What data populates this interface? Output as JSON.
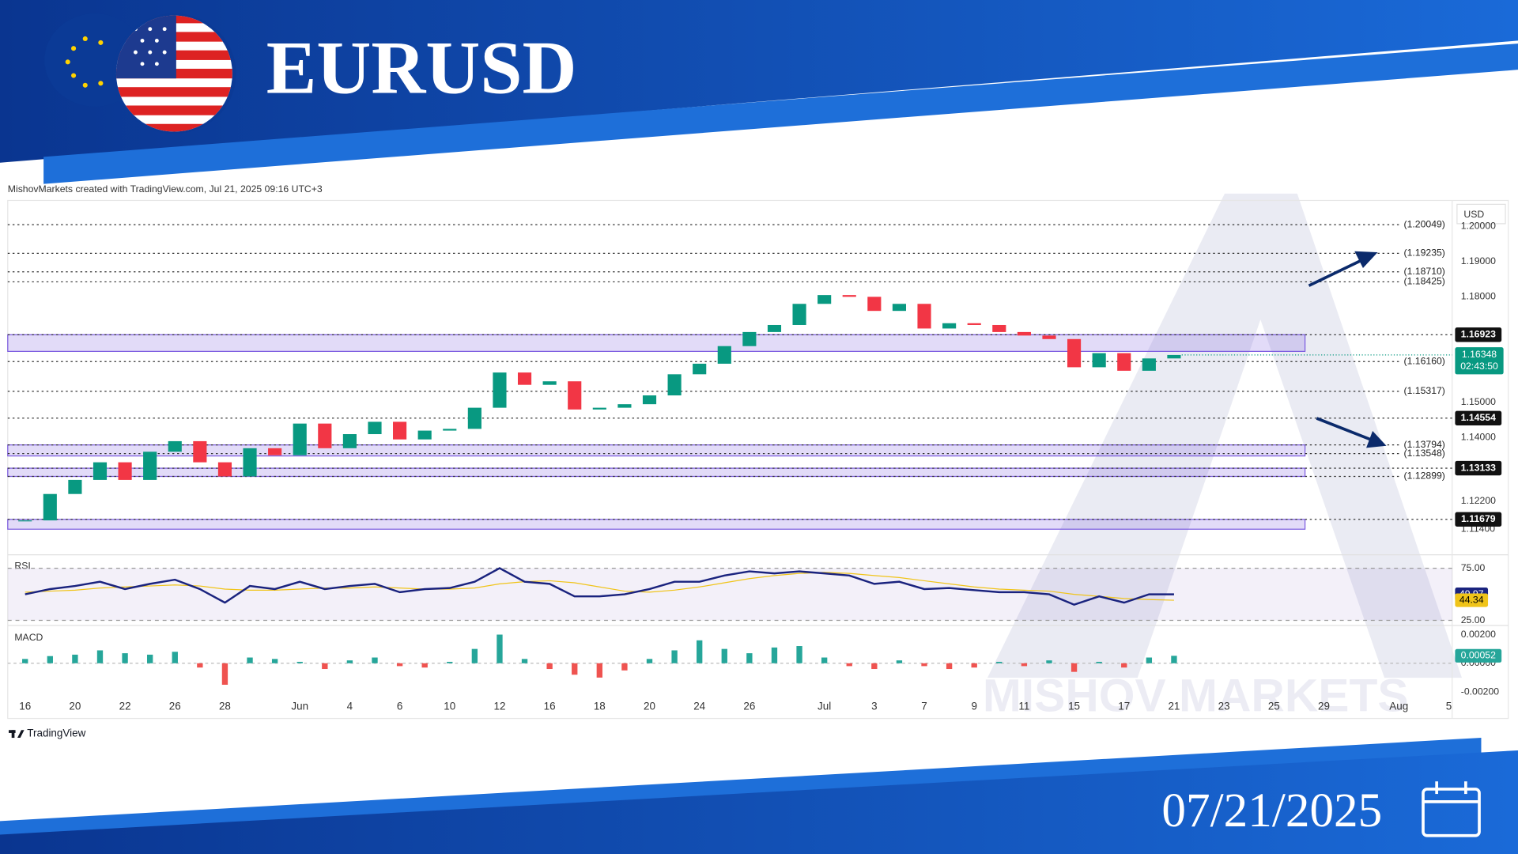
{
  "header": {
    "title": "EURUSD"
  },
  "footer": {
    "date": "07/21/2025"
  },
  "attribution": "MishovMarkets created with TradingView.com, Jul 21, 2025 09:16 UTC+3",
  "branding": "TradingView",
  "watermark": "MISHOV MARKETS",
  "chart_data": {
    "type": "candlestick",
    "currency": "USD",
    "countdown": "02:43:50",
    "up_color": "#089981",
    "down_color": "#f23645",
    "categories": [
      "16",
      null,
      "20",
      null,
      "22",
      null,
      "26",
      null,
      "28",
      null,
      null,
      "Jun",
      null,
      "4",
      null,
      "6",
      null,
      "10",
      null,
      "12",
      null,
      "16",
      null,
      "18",
      null,
      "20",
      null,
      "24",
      null,
      "26",
      null,
      null,
      "Jul",
      null,
      "3",
      null,
      "7",
      null,
      "9",
      null,
      "11",
      null,
      "15",
      null,
      "17",
      null,
      "21",
      null,
      "23",
      null,
      "25",
      null,
      "29",
      null,
      null,
      "Aug",
      null,
      "5"
    ],
    "series": [
      {
        "values": [
          1.1165,
          1.124,
          1.128,
          1.133,
          1.128,
          1.136,
          1.139,
          1.133,
          1.129,
          1.137,
          1.135,
          1.144,
          1.137,
          1.141,
          1.1445,
          1.1395,
          1.142,
          1.1425,
          1.1485,
          1.1585,
          1.155,
          1.156,
          1.148,
          1.1485,
          1.1495,
          1.152,
          1.158,
          1.161,
          1.166,
          1.17,
          1.172,
          1.178,
          1.1805,
          1.18,
          1.176,
          1.178,
          1.171,
          1.1725,
          1.172,
          1.17,
          1.169,
          1.168,
          1.16,
          1.164,
          1.159,
          1.1625,
          1.16348,
          null,
          null,
          null,
          null,
          null,
          null,
          null,
          null,
          null,
          null,
          null
        ]
      }
    ],
    "ylim": [
      1.107,
      1.206
    ],
    "yticks": [
      {
        "value": 1.2,
        "label": "1.20000"
      },
      {
        "value": 1.19,
        "label": "1.19000"
      },
      {
        "value": 1.18,
        "label": "1.18000"
      },
      {
        "value": 1.15,
        "label": "1.15000"
      },
      {
        "value": 1.14,
        "label": "1.14000"
      },
      {
        "value": 1.122,
        "label": "1.12200"
      },
      {
        "value": 1.114,
        "label": "1.11400"
      }
    ],
    "levels": [
      {
        "value": 1.20049,
        "label": "(1.20049)"
      },
      {
        "value": 1.19235,
        "label": "(1.19235)"
      },
      {
        "value": 1.1871,
        "label": "(1.18710)"
      },
      {
        "value": 1.18425,
        "label": "(1.18425)"
      },
      {
        "value": 1.1616,
        "label": "(1.16160)"
      },
      {
        "value": 1.15317,
        "label": "(1.15317)"
      },
      {
        "value": 1.13794,
        "label": "(1.13794)"
      },
      {
        "value": 1.13548,
        "label": "(1.13548)"
      },
      {
        "value": 1.12899,
        "label": "(1.12899)"
      }
    ],
    "key_levels": [
      {
        "value": 1.16923,
        "label": "1.16923"
      },
      {
        "value": 1.14554,
        "label": "1.14554"
      },
      {
        "value": 1.13133,
        "label": "1.13133"
      },
      {
        "value": 1.11679,
        "label": "1.11679"
      }
    ],
    "zones": [
      [
        1.16923,
        1.1645
      ],
      [
        1.13794,
        1.1348
      ],
      [
        1.13133,
        1.12899
      ],
      [
        1.11679,
        1.114
      ]
    ],
    "zone_color": "#7b5be0",
    "rsi": {
      "title": "RSI",
      "ylim": [
        21,
        86
      ],
      "yticks": [
        {
          "value": 75,
          "label": "75.00"
        },
        {
          "value": 25,
          "label": "25.00"
        }
      ],
      "series": [
        {
          "color": "#1a237e",
          "values": [
            50,
            55,
            58,
            62,
            55,
            60,
            64,
            55,
            42,
            58,
            55,
            62,
            55,
            58,
            60,
            52,
            55,
            56,
            62,
            75,
            62,
            60,
            48,
            48,
            50,
            55,
            62,
            62,
            68,
            72,
            70,
            72,
            70,
            68,
            60,
            62,
            55,
            56,
            54,
            52,
            52,
            50,
            40,
            48,
            42,
            50,
            49.97,
            null,
            null,
            null,
            null,
            null,
            null,
            null,
            null,
            null,
            null,
            null
          ]
        },
        {
          "color": "#f0c419",
          "values": [
            52,
            53,
            54,
            56,
            57,
            58,
            59,
            58,
            55,
            54,
            54,
            55,
            56,
            56,
            57,
            56,
            55,
            55,
            56,
            60,
            62,
            63,
            61,
            57,
            53,
            52,
            54,
            57,
            61,
            65,
            68,
            70,
            71,
            70,
            68,
            66,
            63,
            60,
            57,
            55,
            54,
            53,
            50,
            48,
            46,
            45,
            44.34,
            null,
            null,
            null,
            null,
            null,
            null,
            null,
            null,
            null,
            null,
            null
          ]
        }
      ]
    },
    "macd": {
      "title": "MACD",
      "ylim": [
        -0.0025,
        0.0025
      ],
      "yticks": [
        {
          "value": 0.002,
          "label": "0.00200"
        },
        {
          "value": 0,
          "label": "0.00000"
        },
        {
          "value": -0.002,
          "label": "-0.00200"
        }
      ],
      "up_color": "#26a69a",
      "down_color": "#ef5350",
      "values": [
        0.0003,
        0.0005,
        0.0006,
        0.0009,
        0.0007,
        0.0006,
        0.0008,
        -0.0003,
        -0.0015,
        0.0004,
        0.0003,
        0.0001,
        -0.0004,
        0.0002,
        0.0004,
        -0.0002,
        -0.0003,
        0.0001,
        0.001,
        0.002,
        0.0003,
        -0.0004,
        -0.0008,
        -0.001,
        -0.0005,
        0.0003,
        0.0009,
        0.0016,
        0.001,
        0.0007,
        0.0011,
        0.0012,
        0.0004,
        -0.0002,
        -0.0004,
        0.0002,
        -0.0002,
        -0.0004,
        -0.0003,
        0.0001,
        -0.0002,
        0.0002,
        -0.0006,
        0.0001,
        -0.0003,
        0.0004,
        0.00052,
        null,
        null,
        null,
        null,
        null,
        null,
        null,
        null,
        null,
        null,
        null
      ]
    }
  }
}
